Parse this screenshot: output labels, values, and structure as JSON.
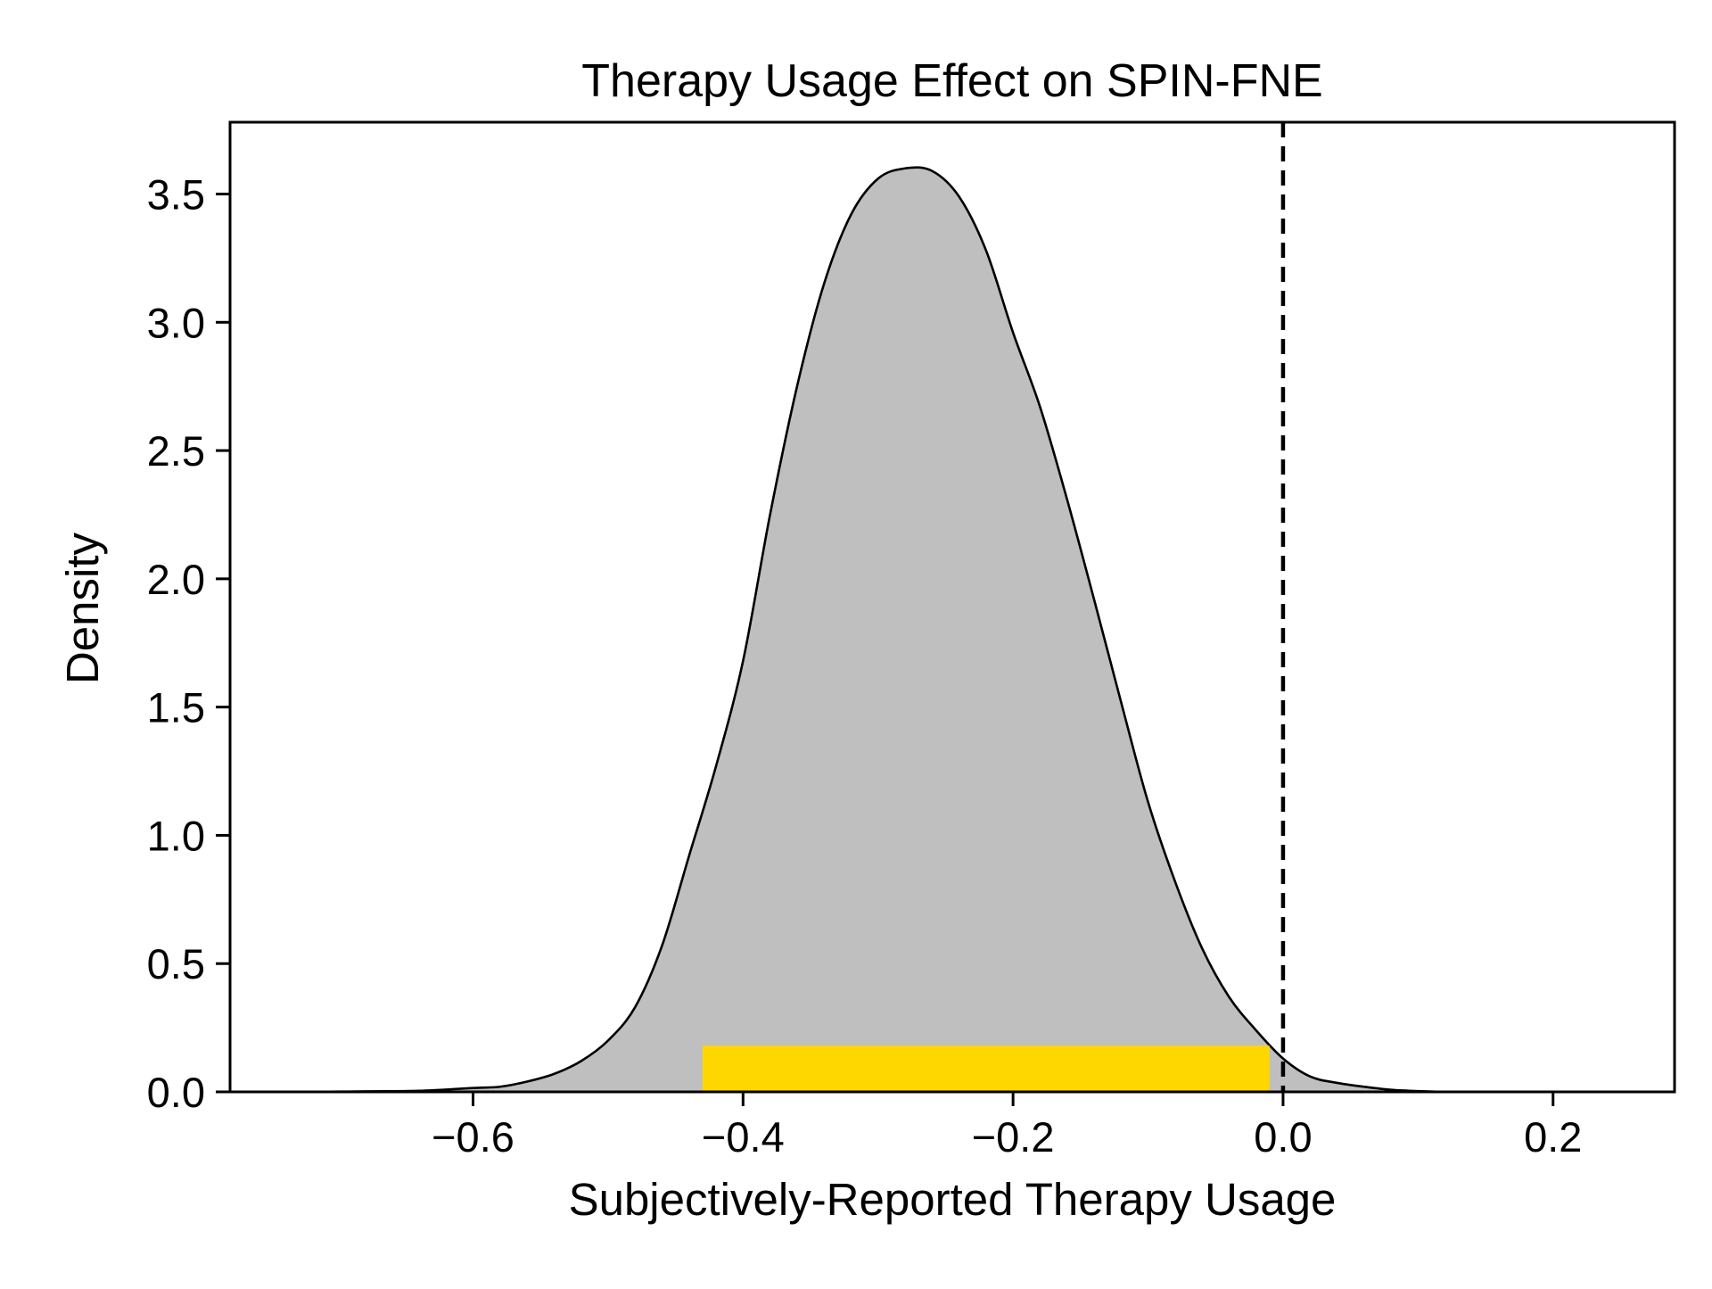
{
  "chart_data": {
    "type": "area",
    "title": "Therapy Usage Effect on SPIN-FNE",
    "xlabel": "Subjectively-Reported Therapy Usage",
    "ylabel": "Density",
    "xlim": [
      -0.78,
      0.29
    ],
    "ylim": [
      0,
      3.78
    ],
    "xticks": [
      -0.6,
      -0.4,
      -0.2,
      0.0,
      0.2
    ],
    "xtick_labels": [
      "−0.6",
      "−0.4",
      "−0.2",
      "0.0",
      "0.2"
    ],
    "yticks": [
      0.0,
      0.5,
      1.0,
      1.5,
      2.0,
      2.5,
      3.0,
      3.5
    ],
    "ytick_labels": [
      "0.0",
      "0.5",
      "1.0",
      "1.5",
      "2.0",
      "2.5",
      "3.0",
      "3.5"
    ],
    "grid": false,
    "series": [
      {
        "type": "density",
        "fill_color": "#bfbfbf",
        "line_color": "#000000",
        "x": [
          -0.78,
          -0.72,
          -0.68,
          -0.64,
          -0.6,
          -0.58,
          -0.56,
          -0.54,
          -0.52,
          -0.5,
          -0.48,
          -0.46,
          -0.44,
          -0.42,
          -0.4,
          -0.38,
          -0.36,
          -0.34,
          -0.32,
          -0.3,
          -0.28,
          -0.26,
          -0.24,
          -0.22,
          -0.2,
          -0.18,
          -0.16,
          -0.14,
          -0.12,
          -0.1,
          -0.08,
          -0.06,
          -0.04,
          -0.02,
          0.0,
          0.02,
          0.04,
          0.06,
          0.08,
          0.1,
          0.12,
          0.14,
          0.16,
          0.18,
          0.2,
          0.22,
          0.29
        ],
        "y": [
          0.0,
          0.0,
          0.002,
          0.004,
          0.015,
          0.02,
          0.04,
          0.07,
          0.12,
          0.2,
          0.33,
          0.57,
          0.92,
          1.27,
          1.68,
          2.25,
          2.75,
          3.15,
          3.42,
          3.56,
          3.6,
          3.59,
          3.49,
          3.28,
          2.96,
          2.67,
          2.31,
          1.92,
          1.52,
          1.13,
          0.82,
          0.56,
          0.37,
          0.24,
          0.13,
          0.06,
          0.035,
          0.02,
          0.008,
          0.003,
          0.0,
          0.0,
          0.0,
          0.0,
          0.0,
          0.0,
          0.0
        ]
      }
    ],
    "interval": {
      "x_start": -0.43,
      "x_end": -0.01,
      "height": 0.18,
      "color": "#ffd700"
    },
    "reference_line": {
      "x": 0.0,
      "style": "dashed",
      "color": "#000000"
    }
  }
}
